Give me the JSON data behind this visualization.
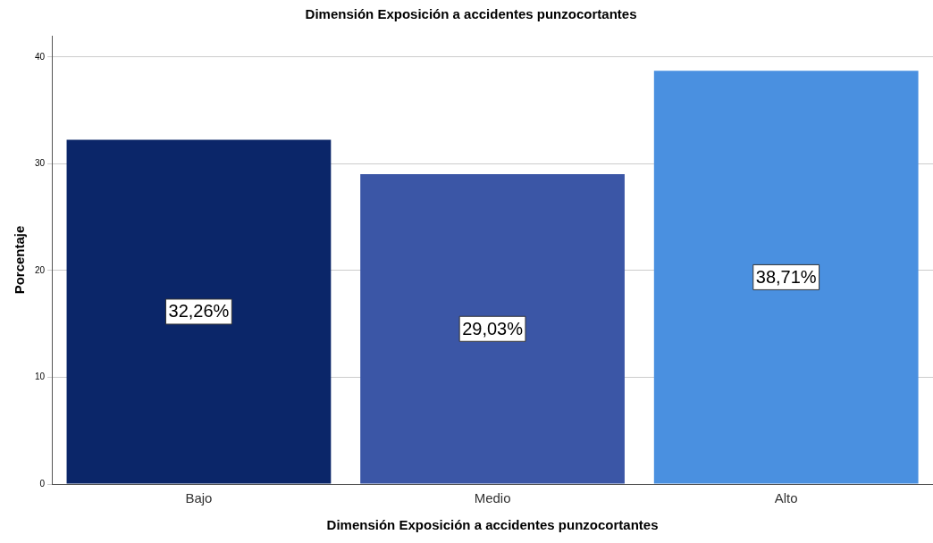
{
  "chart_data": {
    "type": "bar",
    "title": "Dimensión Exposición a accidentes punzocortantes",
    "xlabel": "Dimensión Exposición a accidentes punzocortantes",
    "ylabel": "Porcentaje",
    "categories": [
      "Bajo",
      "Medio",
      "Alto"
    ],
    "values": [
      32.26,
      29.03,
      38.71
    ],
    "colors": [
      "#0b2669",
      "#3b56a6",
      "#4a90e0"
    ],
    "value_labels": [
      "32,26%",
      "29,03%",
      "38,71%"
    ],
    "ylim": [
      0,
      42
    ],
    "yticks": [
      0,
      10,
      20,
      30,
      40
    ],
    "grid": "y",
    "legend": false
  }
}
